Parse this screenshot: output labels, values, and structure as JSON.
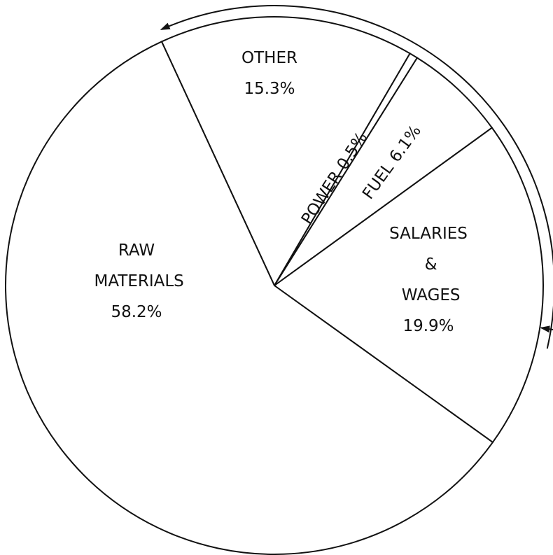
{
  "chart_data": {
    "type": "pie",
    "categories": [
      "OTHER",
      "POWER",
      "FUEL",
      "SALARIES & WAGES",
      "RAW MATERIALS"
    ],
    "values": [
      15.3,
      0.5,
      6.1,
      19.9,
      58.2
    ],
    "value_labels": [
      "15.3%",
      "0.5%",
      "6.1%",
      "19.9%",
      "58.2%"
    ],
    "color": "#ffffff"
  }
}
